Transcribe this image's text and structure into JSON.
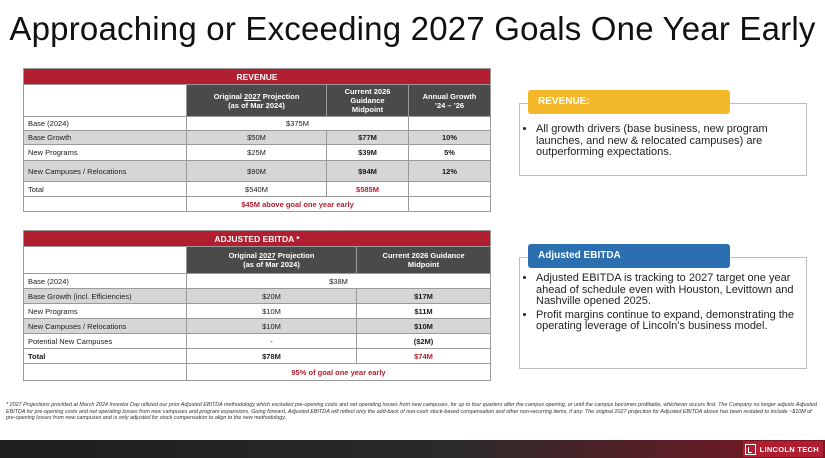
{
  "title": "Approaching or Exceeding 2027 Goals One Year Early",
  "revenue_table": {
    "banner": "REVENUE",
    "headers": {
      "orig_prefix": "Original ",
      "orig_year": "2027",
      "orig_suffix": " Projection",
      "orig_line2": "(as of Mar 2024)",
      "current_line1": "Current 2026",
      "current_line2": "Guidance",
      "current_line3": "Midpoint",
      "growth_line1": "Annual Growth",
      "growth_line2": "’24 – ’26"
    },
    "base_label": "Base (2024)",
    "base_value": "$375M",
    "rows": [
      {
        "label": "Base Growth",
        "orig": "$50M",
        "current": "$77M",
        "growth": "10%"
      },
      {
        "label": "New Programs",
        "orig": "$25M",
        "current": "$39M",
        "growth": "5%"
      },
      {
        "label": "New Campuses / Relocations",
        "orig": "$90M",
        "current": "$94M",
        "growth": "12%"
      }
    ],
    "total": {
      "label": "Total",
      "orig": "$540M",
      "current": "$585M"
    },
    "note": "$45M above goal one year early"
  },
  "ebitda_table": {
    "banner": "ADJUSTED EBITDA *",
    "headers": {
      "orig_prefix": "Original ",
      "orig_year": "2027",
      "orig_suffix": " Projection",
      "orig_line2": "(as of Mar 2024)",
      "current_line1": "Current 2026 Guidance",
      "current_line2": "Midpoint"
    },
    "base_label": "Base (2024)",
    "base_value": "$38M",
    "rows": [
      {
        "label": "Base Growth (incl. Efficiencies)",
        "orig": "$20M",
        "current": "$17M"
      },
      {
        "label": "New Programs",
        "orig": "$10M",
        "current": "$11M"
      },
      {
        "label": "New Campuses / Relocations",
        "orig": "$10M",
        "current": "$10M"
      },
      {
        "label": "Potential New Campuses",
        "orig": "-",
        "current": "($2M)"
      }
    ],
    "total": {
      "label": "Total",
      "orig": "$78M",
      "current": "$74M"
    },
    "note": "95% of goal one year early"
  },
  "revenue_box": {
    "tag": "REVENUE:",
    "bullets": [
      "All growth drivers (base business, new program launches, and new & relocated campuses) are outperforming expectations."
    ]
  },
  "ebitda_box": {
    "tag": "Adjusted EBITDA",
    "bullets": [
      "Adjusted EBITDA is tracking to 2027 target one year ahead of schedule even with Houston, Levittown and Nashville opened 2025.",
      "Profit margins continue to expand, demonstrating the operating leverage of Lincoln’s business model."
    ]
  },
  "footnote": "* 2027 Projections provided at March 2024 Investor Day utilized our prior Adjusted EBITDA methodology which excluded pre-opening costs and net operating losses from new campuses, for up to four quarters after the campus opening, or until the campus becomes profitable, whichever occurs first. The Company no longer adjusts Adjusted EBITDA for pre-opening costs and net operating losses from new campuses and program expansions. Going forward, Adjusted EBITDA will reflect only the add-back of non-cash stock-based compensation and other non-recurring items, if any. The original 2027 projection for Adjusted EBITDA above has been restated to include ~$10M of pre-opening losses from new campuses and is only adjusted for stock compensation to align to the new methodology.",
  "logo_text": "LINCOLN TECH",
  "colors": {
    "brand_red": "#b01e2f",
    "header_gray": "#4a4a4a",
    "revenue_tag": "#f3b92a",
    "ebitda_tag": "#2b6fb0"
  }
}
